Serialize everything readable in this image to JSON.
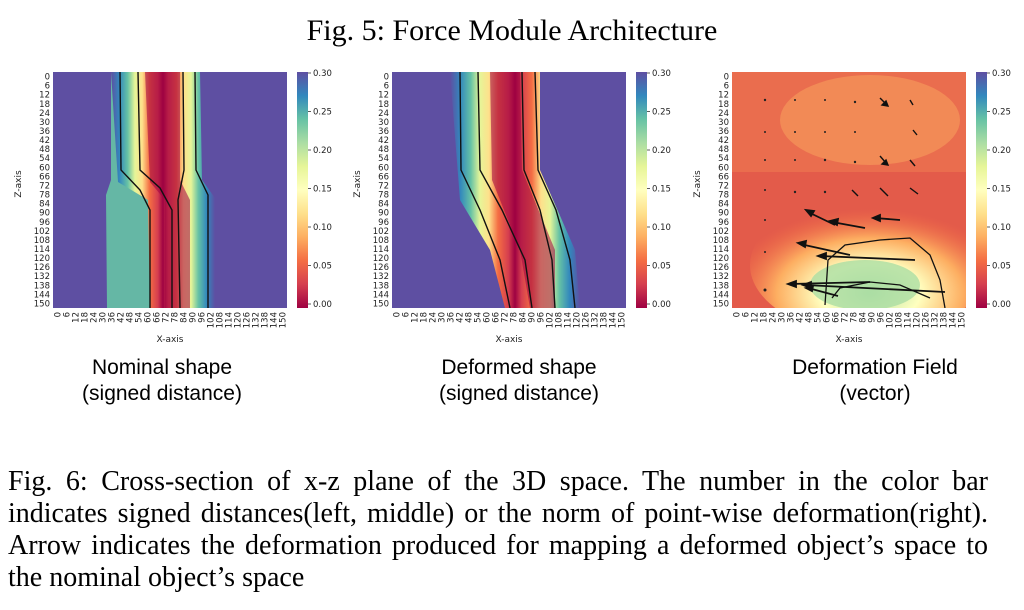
{
  "figure5": {
    "title": "Fig. 5:  Force Module Architecture"
  },
  "panels": [
    {
      "caption_line1": "Nominal shape",
      "caption_line2": "(signed distance)"
    },
    {
      "caption_line1": "Deformed shape",
      "caption_line2": "(signed distance)"
    },
    {
      "caption_line1": "Deformation Field",
      "caption_line2": "(vector)"
    }
  ],
  "axes": {
    "xlabel": "X-axis",
    "ylabel": "Z-axis",
    "ticks": [
      "0",
      "6",
      "12",
      "18",
      "24",
      "30",
      "36",
      "42",
      "48",
      "54",
      "60",
      "66",
      "72",
      "78",
      "84",
      "90",
      "96",
      "102",
      "108",
      "114",
      "120",
      "126",
      "132",
      "138",
      "144",
      "150"
    ],
    "colorbar_ticks": [
      "0.30",
      "0.25",
      "0.20",
      "0.15",
      "0.10",
      "0.05",
      "0.00"
    ]
  },
  "chart_data": [
    {
      "type": "heatmap",
      "title": "Nominal shape (signed distance)",
      "xlabel": "X-axis",
      "ylabel": "Z-axis",
      "xlim": [
        0,
        150
      ],
      "ylim": [
        0,
        150
      ],
      "color_range": [
        0.0,
        0.3
      ],
      "colormap": "Spectral"
    },
    {
      "type": "heatmap",
      "title": "Deformed shape (signed distance)",
      "xlabel": "X-axis",
      "ylabel": "Z-axis",
      "xlim": [
        0,
        150
      ],
      "ylim": [
        0,
        150
      ],
      "color_range": [
        0.0,
        0.3
      ],
      "colormap": "Spectral"
    },
    {
      "type": "heatmap",
      "title": "Deformation Field (vector)",
      "xlabel": "X-axis",
      "ylabel": "Z-axis",
      "xlim": [
        0,
        150
      ],
      "ylim": [
        0,
        150
      ],
      "color_range": [
        0.0,
        0.3
      ],
      "colormap": "Spectral",
      "overlay": "vector arrows"
    }
  ],
  "figure6": {
    "caption": "Fig. 6: Cross-section of x-z plane of the 3D space. The number in the color bar indicates signed distances(left, middle) or the norm of point-wise deformation(right). Arrow indicates the deformation produced for mapping a deformed object’s space to the nominal object’s space"
  },
  "colors": {
    "spectral_high": "#5e4fa2",
    "spectral_low": "#9e0142"
  }
}
